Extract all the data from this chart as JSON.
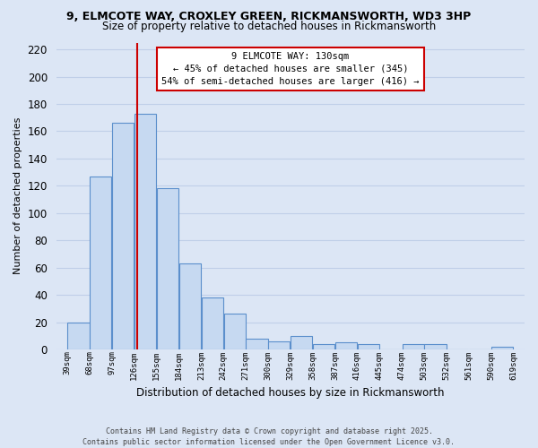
{
  "title1": "9, ELMCOTE WAY, CROXLEY GREEN, RICKMANSWORTH, WD3 3HP",
  "title2": "Size of property relative to detached houses in Rickmansworth",
  "xlabel": "Distribution of detached houses by size in Rickmansworth",
  "ylabel": "Number of detached properties",
  "bins": [
    39,
    68,
    97,
    126,
    155,
    184,
    213,
    242,
    271,
    300,
    329,
    358,
    387,
    416,
    445,
    474,
    503,
    532,
    561,
    590,
    619
  ],
  "counts": [
    20,
    127,
    166,
    173,
    118,
    63,
    38,
    26,
    8,
    6,
    10,
    4,
    5,
    4,
    0,
    4,
    4,
    0,
    0,
    2
  ],
  "bar_color": "#c6d9f1",
  "bar_edgecolor": "#5b8fcc",
  "vline_x": 130,
  "vline_color": "#cc0000",
  "annotation_title": "9 ELMCOTE WAY: 130sqm",
  "annotation_line1": "← 45% of detached houses are smaller (345)",
  "annotation_line2": "54% of semi-detached houses are larger (416) →",
  "annotation_box_facecolor": "#ffffff",
  "annotation_box_edgecolor": "#cc0000",
  "ylim": [
    0,
    225
  ],
  "yticks": [
    0,
    20,
    40,
    60,
    80,
    100,
    120,
    140,
    160,
    180,
    200,
    220
  ],
  "tick_labels": [
    "39sqm",
    "68sqm",
    "97sqm",
    "126sqm",
    "155sqm",
    "184sqm",
    "213sqm",
    "242sqm",
    "271sqm",
    "300sqm",
    "329sqm",
    "358sqm",
    "387sqm",
    "416sqm",
    "445sqm",
    "474sqm",
    "503sqm",
    "532sqm",
    "561sqm",
    "590sqm",
    "619sqm"
  ],
  "footnote1": "Contains HM Land Registry data © Crown copyright and database right 2025.",
  "footnote2": "Contains public sector information licensed under the Open Government Licence v3.0.",
  "bg_color": "#dce6f5",
  "grid_color": "#c0cfe8",
  "title1_fontsize": 9.0,
  "title2_fontsize": 8.5,
  "ylabel_fontsize": 8.0,
  "xlabel_fontsize": 8.5
}
